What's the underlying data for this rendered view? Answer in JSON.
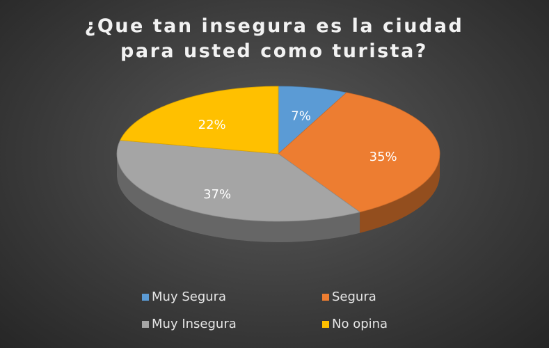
{
  "chart_data": {
    "type": "pie",
    "title": "¿Que tan insegura es la ciudad para usted como turista?",
    "categories": [
      "Muy Segura",
      "Segura",
      "Muy Insegura",
      "No opina"
    ],
    "values": [
      7,
      35,
      37,
      22
    ],
    "value_labels": [
      "7%",
      "35%",
      "37%",
      "22%"
    ],
    "colors": [
      "#5b9bd5",
      "#ed7d31",
      "#a5a5a5",
      "#ffc000"
    ],
    "legend": "bottom"
  }
}
